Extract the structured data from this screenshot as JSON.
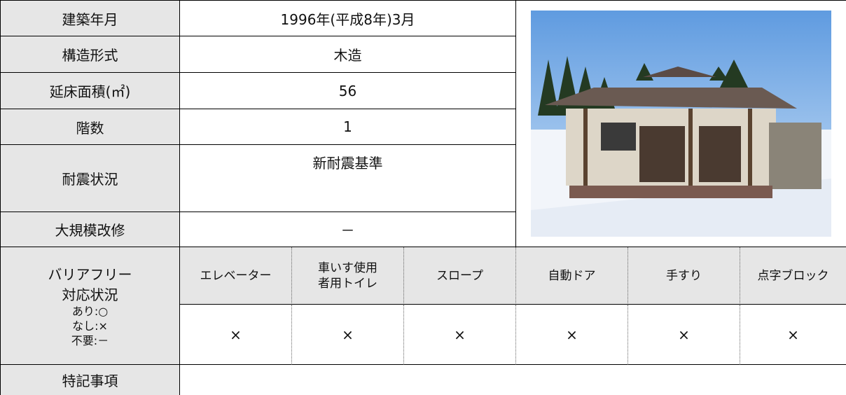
{
  "table": {
    "rows": [
      {
        "label": "建築年月",
        "value": "1996年(平成8年)3月"
      },
      {
        "label": "構造形式",
        "value": "木造"
      },
      {
        "label": "延床面積(㎡)",
        "value": "56"
      },
      {
        "label": "階数",
        "value": "1"
      },
      {
        "label": "耐震状況",
        "value": "新耐震基準"
      },
      {
        "label": "大規模改修",
        "value": "－"
      }
    ],
    "barrier_free": {
      "label": [
        "バリアフリー",
        "対応状況"
      ],
      "legend": [
        "あり:○",
        "なし:×",
        "不要:－"
      ],
      "items": [
        "エレベーター",
        "車いす使用者用トイレ",
        "スロープ",
        "自動ドア",
        "手すり",
        "点字ブロック"
      ],
      "values": [
        "×",
        "×",
        "×",
        "×",
        "×",
        "×"
      ]
    },
    "notes": {
      "label": "特記事項"
    }
  }
}
